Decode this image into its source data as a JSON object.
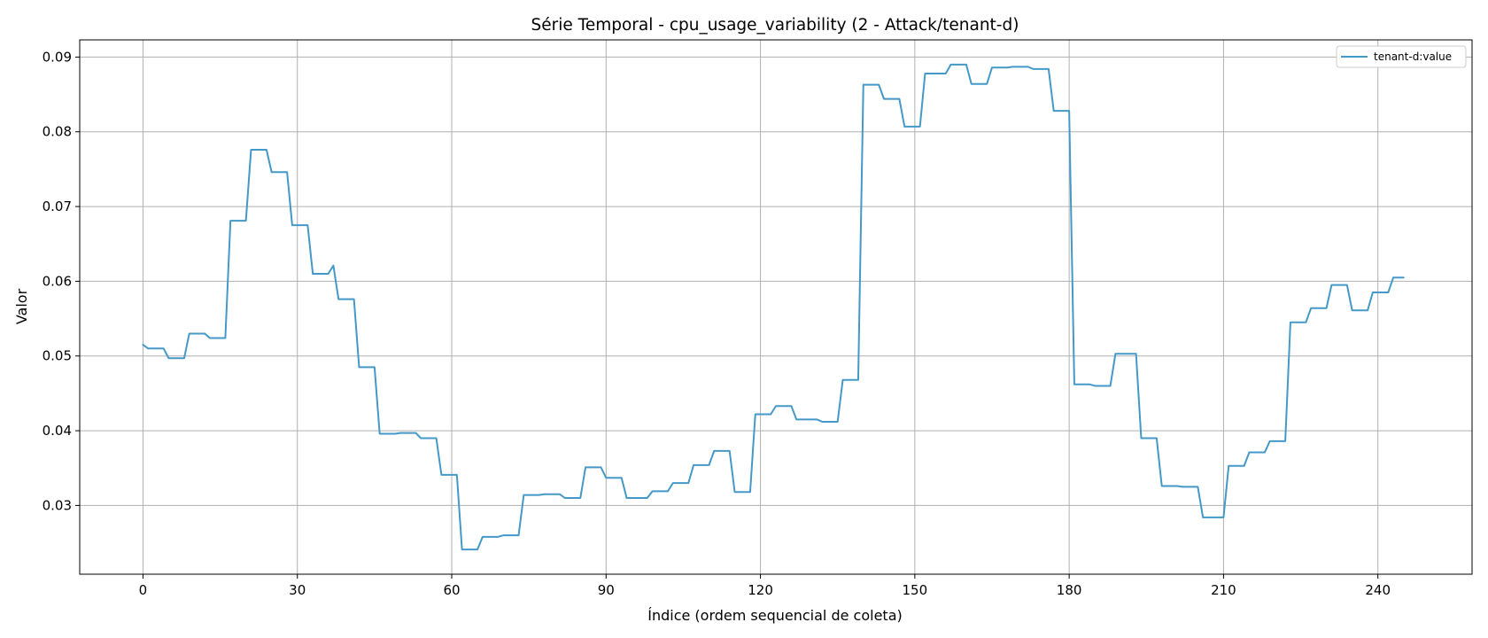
{
  "chart_data": {
    "type": "line",
    "title": "Série Temporal - cpu_usage_variability (2 - Attack/tenant-d)",
    "xlabel": "Índice (ordem sequencial de coleta)",
    "ylabel": "Valor",
    "xlim": [
      -12.3,
      258.3
    ],
    "ylim": [
      0.0208,
      0.0923
    ],
    "x_ticks": [
      0,
      30,
      60,
      90,
      120,
      150,
      180,
      210,
      240
    ],
    "x_tick_labels": [
      "0",
      "30",
      "60",
      "90",
      "120",
      "150",
      "180",
      "210",
      "240"
    ],
    "y_ticks": [
      0.03,
      0.04,
      0.05,
      0.06,
      0.07,
      0.08,
      0.09
    ],
    "y_tick_labels": [
      "0.03",
      "0.04",
      "0.05",
      "0.06",
      "0.07",
      "0.08",
      "0.09"
    ],
    "grid": true,
    "legend_position": "top-right",
    "series": [
      {
        "name": "tenant-d:value",
        "color": "#4499c8",
        "points": [
          [
            0,
            0.0515
          ],
          [
            1,
            0.051
          ],
          [
            4,
            0.051
          ],
          [
            5,
            0.0497
          ],
          [
            8,
            0.0497
          ],
          [
            9,
            0.053
          ],
          [
            12,
            0.053
          ],
          [
            13,
            0.0524
          ],
          [
            16,
            0.0524
          ],
          [
            17,
            0.0681
          ],
          [
            20,
            0.0681
          ],
          [
            21,
            0.0776
          ],
          [
            24,
            0.0776
          ],
          [
            25,
            0.0746
          ],
          [
            28,
            0.0746
          ],
          [
            29,
            0.0675
          ],
          [
            32,
            0.0675
          ],
          [
            33,
            0.061
          ],
          [
            36,
            0.061
          ],
          [
            37,
            0.0621
          ],
          [
            38,
            0.0576
          ],
          [
            41,
            0.0576
          ],
          [
            42,
            0.0485
          ],
          [
            45,
            0.0485
          ],
          [
            46,
            0.0396
          ],
          [
            49,
            0.0396
          ],
          [
            50,
            0.0397
          ],
          [
            53,
            0.0397
          ],
          [
            54,
            0.039
          ],
          [
            57,
            0.039
          ],
          [
            58,
            0.0341
          ],
          [
            61,
            0.0341
          ],
          [
            62,
            0.0241
          ],
          [
            65,
            0.0241
          ],
          [
            66,
            0.0258
          ],
          [
            69,
            0.0258
          ],
          [
            70,
            0.026
          ],
          [
            73,
            0.026
          ],
          [
            74,
            0.0314
          ],
          [
            77,
            0.0314
          ],
          [
            78,
            0.0315
          ],
          [
            81,
            0.0315
          ],
          [
            82,
            0.031
          ],
          [
            85,
            0.031
          ],
          [
            86,
            0.0351
          ],
          [
            89,
            0.0351
          ],
          [
            90,
            0.0337
          ],
          [
            93,
            0.0337
          ],
          [
            94,
            0.031
          ],
          [
            98,
            0.031
          ],
          [
            99,
            0.0319
          ],
          [
            102,
            0.0319
          ],
          [
            103,
            0.033
          ],
          [
            106,
            0.033
          ],
          [
            107,
            0.0354
          ],
          [
            110,
            0.0354
          ],
          [
            111,
            0.0373
          ],
          [
            114,
            0.0373
          ],
          [
            115,
            0.0318
          ],
          [
            118,
            0.0318
          ],
          [
            119,
            0.0422
          ],
          [
            122,
            0.0422
          ],
          [
            123,
            0.0433
          ],
          [
            126,
            0.0433
          ],
          [
            127,
            0.0415
          ],
          [
            131,
            0.0415
          ],
          [
            132,
            0.0412
          ],
          [
            135,
            0.0412
          ],
          [
            136,
            0.0468
          ],
          [
            139,
            0.0468
          ],
          [
            140,
            0.0863
          ],
          [
            143,
            0.0863
          ],
          [
            144,
            0.0844
          ],
          [
            147,
            0.0844
          ],
          [
            148,
            0.0807
          ],
          [
            151,
            0.0807
          ],
          [
            152,
            0.0878
          ],
          [
            156,
            0.0878
          ],
          [
            157,
            0.089
          ],
          [
            160,
            0.089
          ],
          [
            161,
            0.0864
          ],
          [
            164,
            0.0864
          ],
          [
            165,
            0.0886
          ],
          [
            168,
            0.0886
          ],
          [
            169,
            0.0887
          ],
          [
            172,
            0.0887
          ],
          [
            173,
            0.0884
          ],
          [
            176,
            0.0884
          ],
          [
            177,
            0.0828
          ],
          [
            180,
            0.0828
          ],
          [
            181,
            0.0462
          ],
          [
            184,
            0.0462
          ],
          [
            185,
            0.046
          ],
          [
            188,
            0.046
          ],
          [
            189,
            0.0503
          ],
          [
            193,
            0.0503
          ],
          [
            194,
            0.039
          ],
          [
            197,
            0.039
          ],
          [
            198,
            0.0326
          ],
          [
            201,
            0.0326
          ],
          [
            202,
            0.0325
          ],
          [
            205,
            0.0325
          ],
          [
            206,
            0.0284
          ],
          [
            210,
            0.0284
          ],
          [
            211,
            0.0353
          ],
          [
            214,
            0.0353
          ],
          [
            215,
            0.0371
          ],
          [
            218,
            0.0371
          ],
          [
            219,
            0.0386
          ],
          [
            222,
            0.0386
          ],
          [
            223,
            0.0545
          ],
          [
            226,
            0.0545
          ],
          [
            227,
            0.0564
          ],
          [
            230,
            0.0564
          ],
          [
            231,
            0.0595
          ],
          [
            234,
            0.0595
          ],
          [
            235,
            0.0561
          ],
          [
            238,
            0.0561
          ],
          [
            239,
            0.0585
          ],
          [
            242,
            0.0585
          ],
          [
            243,
            0.0605
          ],
          [
            245,
            0.0605
          ]
        ]
      }
    ]
  }
}
